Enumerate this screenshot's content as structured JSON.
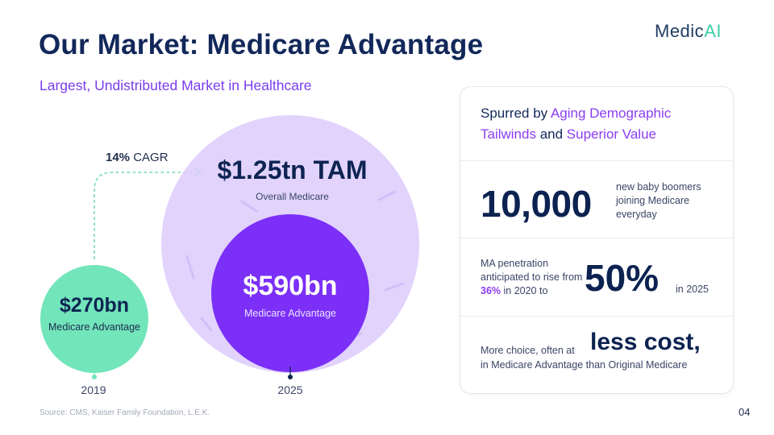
{
  "slide": {
    "title": "Our Market: Medicare Advantage",
    "subtitle": "Largest, Undistributed Market in Healthcare",
    "logo": {
      "part1": "Medic",
      "part2": "AI"
    },
    "source": "Source: CMS, Kaiser Family Foundation, L.E.K.",
    "page_number": "04"
  },
  "chart_data": {
    "type": "bubble",
    "cagr": {
      "value": "14%",
      "label": "CAGR"
    },
    "bubbles": [
      {
        "year": "2019",
        "value": 270,
        "unit": "bn",
        "value_label": "$270bn",
        "label": "Medicare Advantage"
      },
      {
        "year": "2025",
        "value": 1250,
        "unit": "bn",
        "value_label": "$1.25tn TAM",
        "label": "Overall Medicare"
      },
      {
        "year": "2025",
        "value": 590,
        "unit": "bn",
        "value_label": "$590bn",
        "label": "Medicare Advantage"
      }
    ],
    "x_labels": [
      "2019",
      "2025"
    ]
  },
  "card": {
    "headline": {
      "p1": "Spurred by ",
      "p2": "Aging Demographic Tailwinds",
      "p3": " and ",
      "p4": "Superior Value"
    },
    "stat1": {
      "big": "10,000",
      "text": "new baby boomers joining Medicare everyday"
    },
    "stat2": {
      "text_pre": "MA penetration anticipated to rise from ",
      "highlight": "36%",
      "text_post": " in 2020 to",
      "big": "50%",
      "suffix": "in 2025"
    },
    "stat3": {
      "pre": "More choice, often at",
      "big": "less cost,",
      "line": "in Medicare Advantage than Original Medicare"
    }
  },
  "colors": {
    "navy": "#12285a",
    "purple": "#7a3cf0",
    "violet": "#7b2ff7",
    "lavender": "#dccbfc",
    "mint": "#72e5bb",
    "logo_accent": "#3ccfa6"
  }
}
